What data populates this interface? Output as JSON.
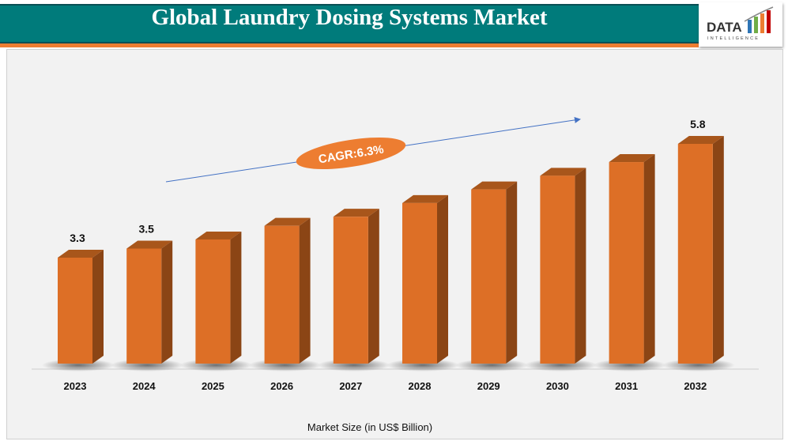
{
  "header": {
    "title": "Global Laundry Dosing Systems Market",
    "logo_text": "DATA",
    "logo_subtext": "INTELLIGENCE"
  },
  "colors": {
    "header": "#007b7b",
    "accent": "#ed7d31",
    "bar_front": "#dd6f26",
    "bar_side": "#8b4515",
    "bar_top": "#a8561b",
    "arrow": "#4472c4"
  },
  "chart_data": {
    "type": "bar",
    "title": "Global Laundry Dosing Systems Market",
    "categories": [
      "2023",
      "2024",
      "2025",
      "2026",
      "2027",
      "2028",
      "2029",
      "2030",
      "2031",
      "2032"
    ],
    "values": [
      3.3,
      3.5,
      3.7,
      4.0,
      4.2,
      4.5,
      4.8,
      5.1,
      5.4,
      5.8
    ],
    "data_labels": {
      "2023": "3.3",
      "2024": "3.5",
      "2032": "5.8"
    },
    "xlabel": "Market Size (in US$ Billion)",
    "ylabel": "",
    "annotation": "CAGR:6.3%",
    "grid": false,
    "legend": "none",
    "style": "3d-column"
  }
}
